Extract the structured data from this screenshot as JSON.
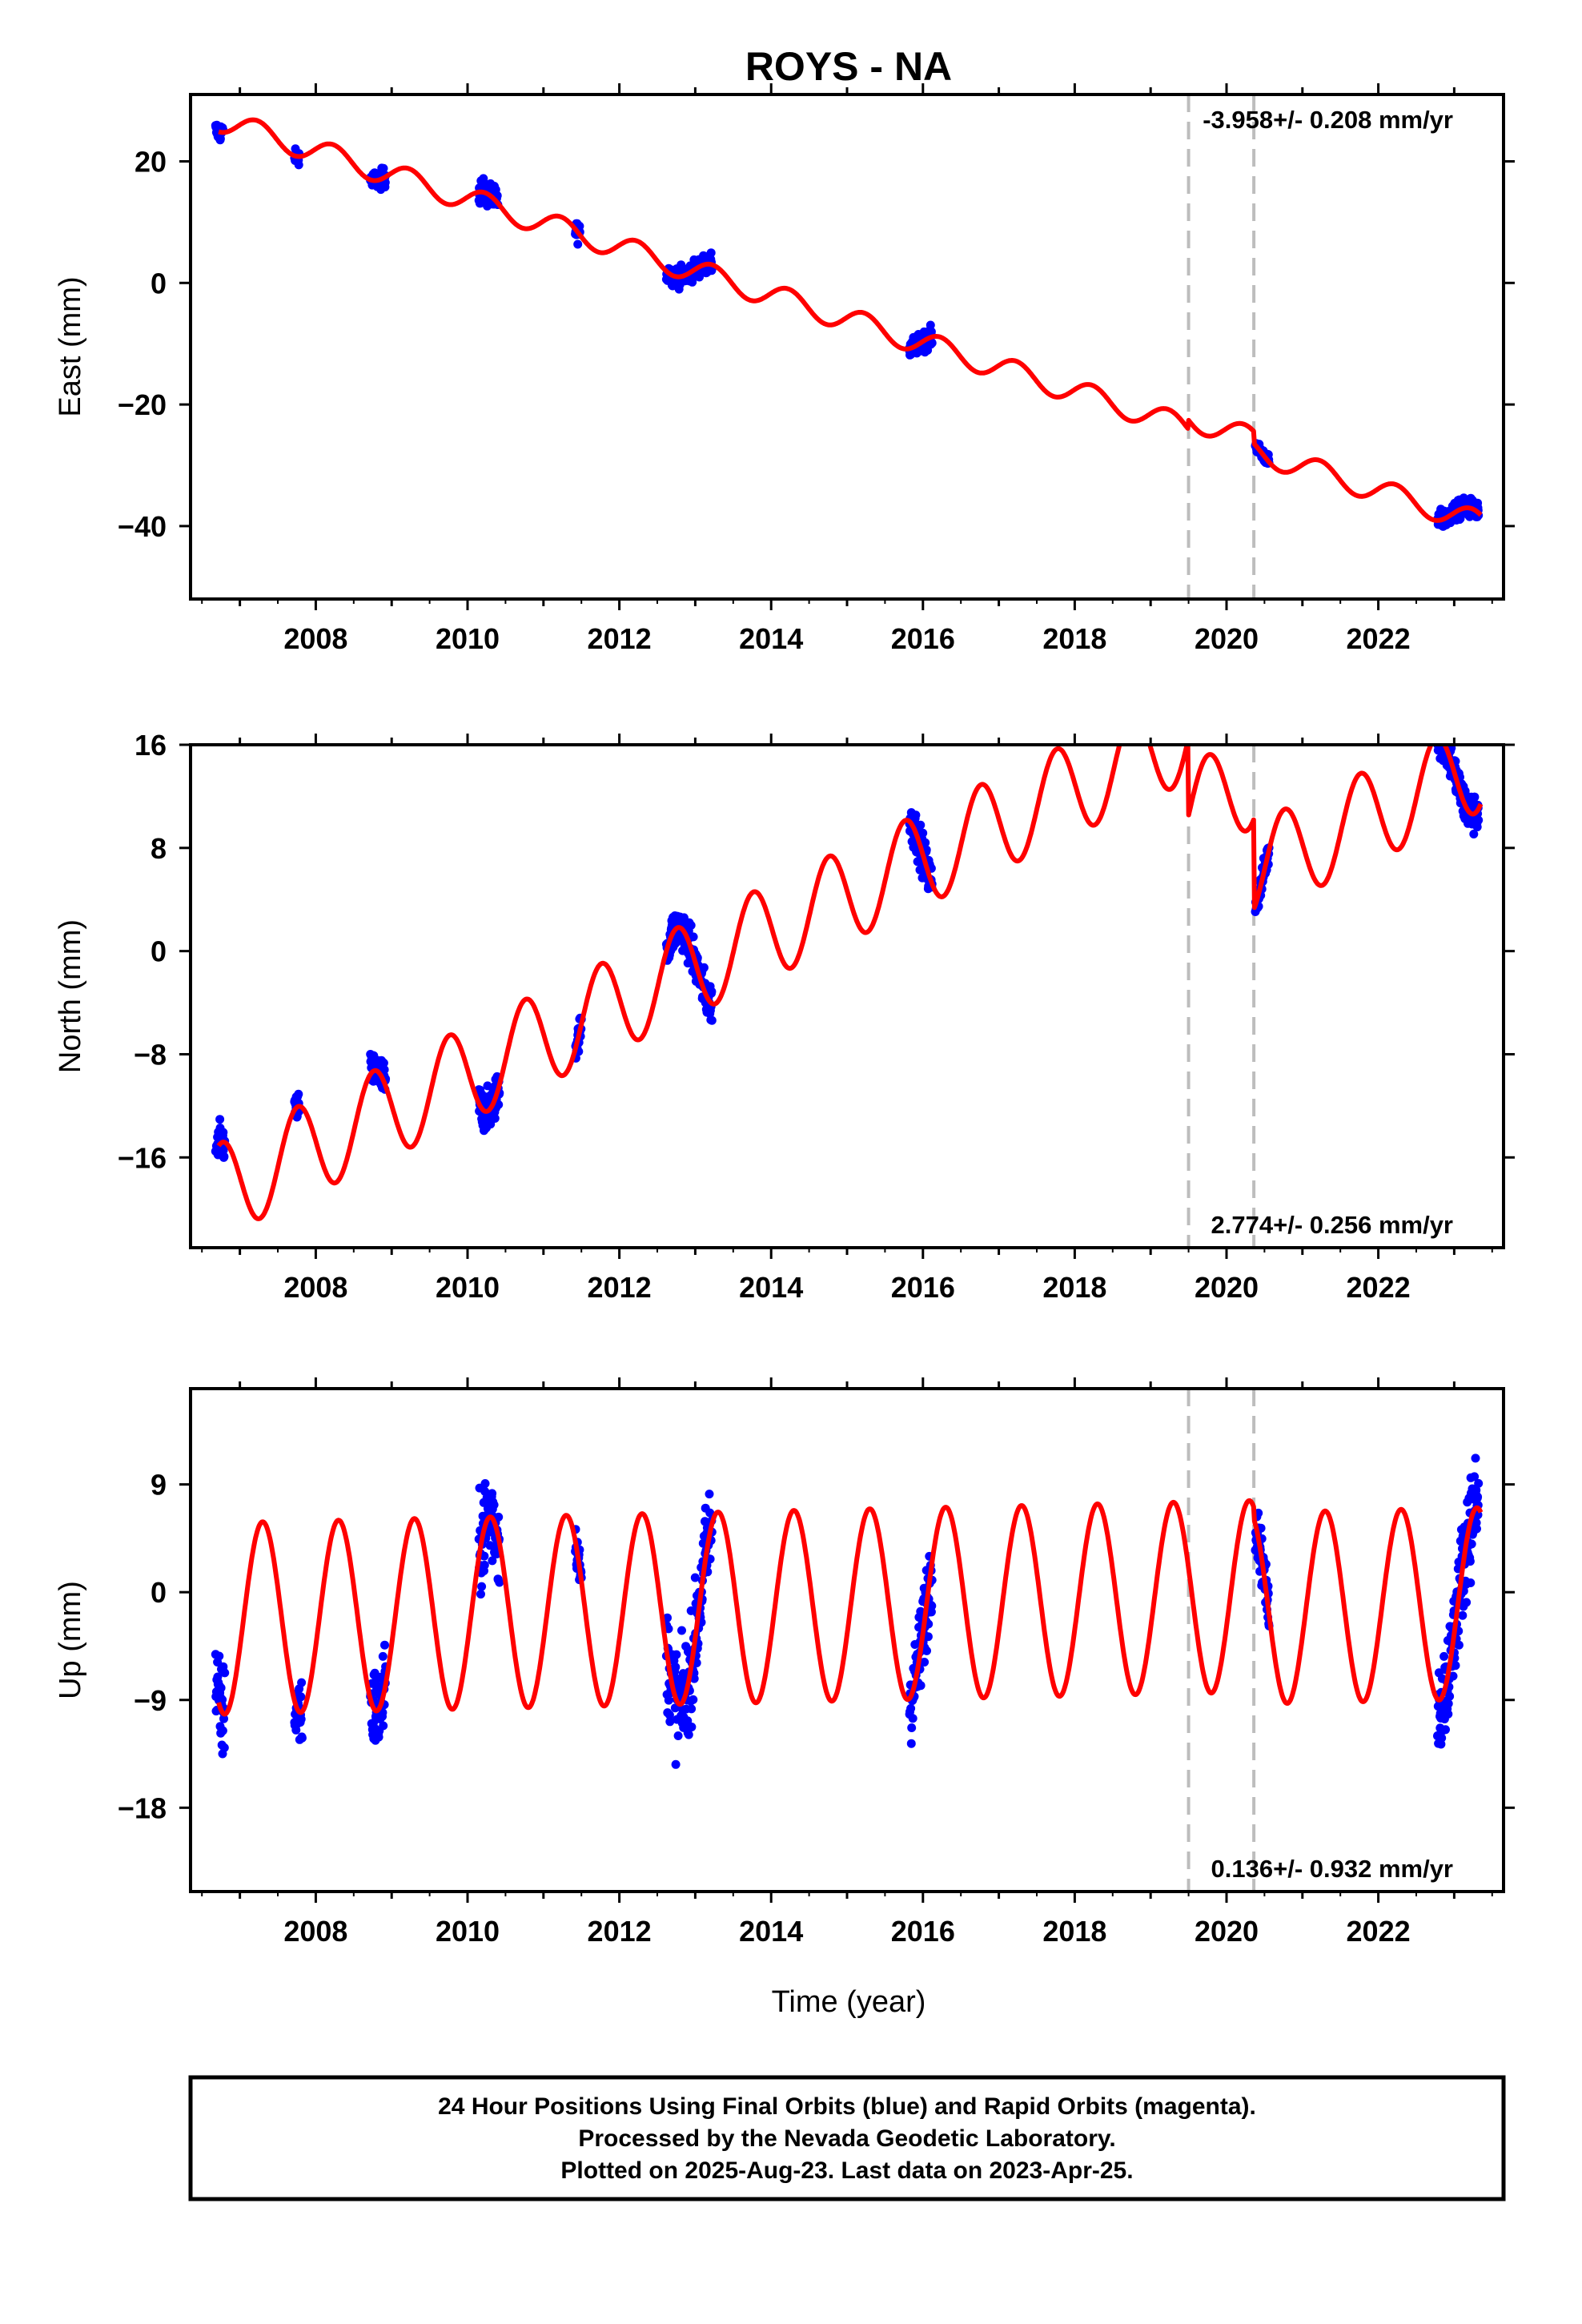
{
  "title": "ROYS - NA",
  "colors": {
    "model": "#ff0000",
    "points": "#0000ff",
    "steps": "#bdbdbd"
  },
  "chart_data": [
    {
      "type": "scatter",
      "component": "east",
      "ylabel": "East (mm)",
      "xlabel": "",
      "ylim": [
        -52,
        31
      ],
      "yticks": [
        -40,
        -20,
        0,
        20
      ],
      "ytick_labels": [
        "−40",
        "−20",
        "0",
        "20"
      ],
      "xlim": [
        2006.35,
        2023.65
      ],
      "xticks": [
        2008,
        2010,
        2012,
        2014,
        2016,
        2018,
        2020,
        2022
      ],
      "xtick_labels": [
        "2008",
        "2010",
        "2012",
        "2014",
        "2016",
        "2018",
        "2020",
        "2022"
      ],
      "rate_label": "-3.958+/- 0.208 mm/yr",
      "rate_position": "top-right",
      "step_epochs": [
        2019.5,
        2020.36
      ],
      "model": {
        "name": "",
        "type": "line",
        "t_start": 2006.72,
        "t_end": 2023.35,
        "a": 26.8,
        "rate": -3.958,
        "seasonal": [
          [
            0.2,
            1.5
          ],
          [
            0.3,
            0.5
          ]
        ],
        "offsets": [
          [
            2019.5,
            1.5
          ],
          [
            2020.36,
            -2.0
          ]
        ]
      },
      "clusters": [
        {
          "t": [
            2006.68,
            2006.78
          ],
          "spread": 1.5
        },
        {
          "t": [
            2007.72,
            2007.78
          ],
          "spread": 1.0
        },
        {
          "t": [
            2008.72,
            2008.92
          ],
          "spread": 1.5
        },
        {
          "t": [
            2010.15,
            2010.4
          ],
          "spread": 2.0
        },
        {
          "t": [
            2011.42,
            2011.48
          ],
          "spread": 1.5
        },
        {
          "t": [
            2012.62,
            2013.22
          ],
          "spread": 1.5
        },
        {
          "t": [
            2015.82,
            2016.12
          ],
          "spread": 1.5
        },
        {
          "t": [
            2020.38,
            2020.56
          ],
          "spread": 1.0
        },
        {
          "t": [
            2022.78,
            2023.32
          ],
          "spread": 1.5
        }
      ]
    },
    {
      "type": "scatter",
      "component": "north",
      "ylabel": "North (mm)",
      "xlabel": "",
      "ylim": [
        -23,
        16
      ],
      "yticks": [
        -16,
        -8,
        0,
        8,
        16
      ],
      "ytick_labels": [
        "−16",
        "−8",
        "0",
        "8",
        "16"
      ],
      "xlim": [
        2006.35,
        2023.65
      ],
      "xticks": [
        2008,
        2010,
        2012,
        2014,
        2016,
        2018,
        2020,
        2022
      ],
      "xtick_labels": [
        "2008",
        "2010",
        "2012",
        "2014",
        "2016",
        "2018",
        "2020",
        "2022"
      ],
      "rate_label": "2.774+/- 0.256 mm/yr",
      "rate_position": "bottom-right",
      "step_epochs": [
        2019.5,
        2020.36
      ],
      "model": {
        "name": "",
        "type": "line",
        "t_start": 2006.72,
        "t_end": 2023.35,
        "a": -18.6,
        "rate": 2.774,
        "seasonal": [
          [
            0.72,
            3.5
          ],
          [
            0.97,
            1.0
          ]
        ],
        "offsets": [
          [
            2019.5,
            -6.0
          ],
          [
            2020.36,
            -7.0
          ]
        ]
      },
      "clusters": [
        {
          "t": [
            2006.68,
            2006.8
          ],
          "spread": 1.5
        },
        {
          "t": [
            2007.72,
            2007.78
          ],
          "spread": 1.0
        },
        {
          "t": [
            2008.72,
            2008.92
          ],
          "spread": 1.5
        },
        {
          "t": [
            2010.15,
            2010.42
          ],
          "spread": 1.5
        },
        {
          "t": [
            2011.42,
            2011.5
          ],
          "spread": 1.0
        },
        {
          "t": [
            2012.62,
            2013.22
          ],
          "spread": 1.5
        },
        {
          "t": [
            2015.82,
            2016.12
          ],
          "spread": 1.5
        },
        {
          "t": [
            2020.38,
            2020.56
          ],
          "spread": 1.0
        },
        {
          "t": [
            2022.78,
            2023.32
          ],
          "spread": 1.5
        }
      ]
    },
    {
      "type": "scatter",
      "component": "up",
      "ylabel": "Up (mm)",
      "xlabel": "Time (year)",
      "ylim": [
        -25,
        17
      ],
      "yticks": [
        -18,
        -9,
        0,
        9
      ],
      "ytick_labels": [
        "−18",
        "−9",
        "0",
        "9"
      ],
      "xlim": [
        2006.35,
        2023.65
      ],
      "xticks": [
        2008,
        2010,
        2012,
        2014,
        2016,
        2018,
        2020,
        2022
      ],
      "xtick_labels": [
        "2008",
        "2010",
        "2012",
        "2014",
        "2016",
        "2018",
        "2020",
        "2022"
      ],
      "rate_label": "0.136+/- 0.932 mm/yr",
      "rate_position": "bottom-right",
      "step_epochs": [
        2019.5,
        2020.36
      ],
      "model": {
        "name": "",
        "type": "line",
        "t_start": 2006.72,
        "t_end": 2023.35,
        "a": -2.2,
        "rate": 0.136,
        "seasonal": [
          [
            0.3,
            8.0
          ]
        ],
        "offsets": [
          [
            2019.5,
            0.0
          ],
          [
            2020.36,
            -1.0
          ]
        ]
      },
      "clusters": [
        {
          "t": [
            2006.68,
            2006.8
          ],
          "spread": 4.0
        },
        {
          "t": [
            2007.72,
            2007.82
          ],
          "spread": 3.0
        },
        {
          "t": [
            2008.72,
            2008.92
          ],
          "spread": 3.5
        },
        {
          "t": [
            2010.15,
            2010.42
          ],
          "spread": 4.0
        },
        {
          "t": [
            2011.42,
            2011.5
          ],
          "spread": 1.5
        },
        {
          "t": [
            2012.62,
            2013.22
          ],
          "spread": 4.0
        },
        {
          "t": [
            2015.82,
            2016.12
          ],
          "spread": 3.5
        },
        {
          "t": [
            2020.38,
            2020.56
          ],
          "spread": 2.0
        },
        {
          "t": [
            2022.78,
            2023.32
          ],
          "spread": 4.0
        }
      ]
    }
  ],
  "footer": {
    "line1": "24 Hour Positions Using Final Orbits (blue) and Rapid Orbits (magenta).",
    "line2": "Processed by the Nevada Geodetic Laboratory.",
    "line3": "Plotted on 2025-Aug-23. Last data on 2023-Apr-25."
  }
}
